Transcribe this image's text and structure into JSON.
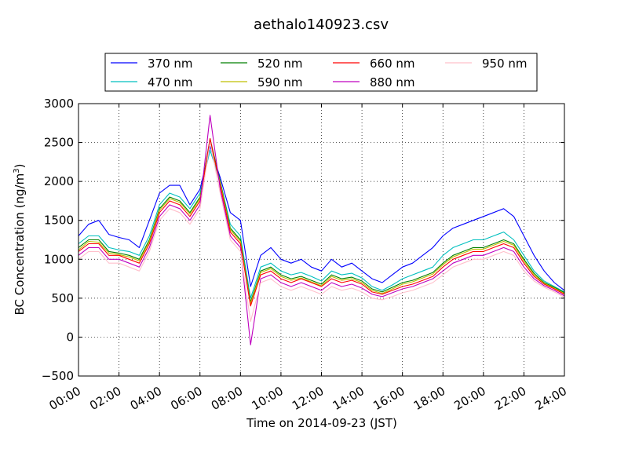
{
  "chart_data": {
    "type": "line",
    "title": "aethalo140923.csv",
    "xlabel": "Time on 2014-09-23 (JST)",
    "ylabel_main": "BC Concentration (ng/m",
    "ylabel_sup": "3",
    "ylabel_end": ")",
    "x_unit": "hours",
    "xlim": [
      0,
      24
    ],
    "ylim": [
      -500,
      3000
    ],
    "grid": true,
    "legend_position": "top",
    "x_ticks": [
      0,
      2,
      4,
      6,
      8,
      10,
      12,
      14,
      16,
      18,
      20,
      22,
      24
    ],
    "x_tick_labels": [
      "00:00",
      "02:00",
      "04:00",
      "06:00",
      "08:00",
      "10:00",
      "12:00",
      "14:00",
      "16:00",
      "18:00",
      "20:00",
      "22:00",
      "24:00"
    ],
    "y_ticks": [
      -500,
      0,
      500,
      1000,
      1500,
      2000,
      2500,
      3000
    ],
    "y_tick_labels": [
      "−500",
      "0",
      "500",
      "1000",
      "1500",
      "2000",
      "2500",
      "3000"
    ],
    "series": [
      {
        "name": "370 nm",
        "color": "#0000ff",
        "x": [
          0,
          0.5,
          1,
          1.5,
          2,
          2.5,
          3,
          3.5,
          4,
          4.5,
          5,
          5.5,
          6,
          6.5,
          7,
          7.5,
          8,
          8.5,
          9,
          9.5,
          10,
          10.5,
          11,
          11.5,
          12,
          12.5,
          13,
          13.5,
          14,
          14.5,
          15,
          15.5,
          16,
          16.5,
          17,
          17.5,
          18,
          18.5,
          19,
          19.5,
          20,
          20.5,
          21,
          21.5,
          22,
          22.5,
          23,
          23.5,
          24
        ],
        "y": [
          1300,
          1450,
          1500,
          1320,
          1280,
          1250,
          1150,
          1500,
          1850,
          1950,
          1950,
          1700,
          1900,
          2450,
          2050,
          1600,
          1500,
          650,
          1050,
          1150,
          1000,
          950,
          1000,
          900,
          850,
          1000,
          900,
          950,
          850,
          750,
          700,
          800,
          900,
          950,
          1050,
          1150,
          1300,
          1400,
          1450,
          1500,
          1550,
          1600,
          1650,
          1550,
          1300,
          1050,
          850,
          700,
          600
        ]
      },
      {
        "name": "470 nm",
        "color": "#00bfbf",
        "x": [
          0,
          0.5,
          1,
          1.5,
          2,
          2.5,
          3,
          3.5,
          4,
          4.5,
          5,
          5.5,
          6,
          6.5,
          7,
          7.5,
          8,
          8.5,
          9,
          9.5,
          10,
          10.5,
          11,
          11.5,
          12,
          12.5,
          13,
          13.5,
          14,
          14.5,
          15,
          15.5,
          16,
          16.5,
          17,
          17.5,
          18,
          18.5,
          19,
          19.5,
          20,
          20.5,
          21,
          21.5,
          22,
          22.5,
          23,
          23.5,
          24
        ],
        "y": [
          1200,
          1300,
          1300,
          1150,
          1120,
          1100,
          1050,
          1300,
          1700,
          1850,
          1800,
          1650,
          1850,
          2400,
          2000,
          1450,
          1300,
          500,
          900,
          950,
          850,
          800,
          830,
          780,
          720,
          850,
          800,
          820,
          760,
          650,
          600,
          670,
          750,
          800,
          850,
          900,
          1050,
          1150,
          1200,
          1250,
          1250,
          1300,
          1350,
          1250,
          1050,
          850,
          720,
          650,
          580
        ]
      },
      {
        "name": "520 nm",
        "color": "#007f00",
        "x": [
          0,
          0.5,
          1,
          1.5,
          2,
          2.5,
          3,
          3.5,
          4,
          4.5,
          5,
          5.5,
          6,
          6.5,
          7,
          7.5,
          8,
          8.5,
          9,
          9.5,
          10,
          10.5,
          11,
          11.5,
          12,
          12.5,
          13,
          13.5,
          14,
          14.5,
          15,
          15.5,
          16,
          16.5,
          17,
          17.5,
          18,
          18.5,
          19,
          19.5,
          20,
          20.5,
          21,
          21.5,
          22,
          22.5,
          23,
          23.5,
          24
        ],
        "y": [
          1150,
          1250,
          1250,
          1100,
          1080,
          1050,
          1000,
          1250,
          1650,
          1800,
          1750,
          1600,
          1800,
          2550,
          2000,
          1400,
          1250,
          450,
          850,
          900,
          800,
          750,
          780,
          730,
          680,
          800,
          750,
          770,
          720,
          620,
          580,
          640,
          700,
          730,
          780,
          830,
          950,
          1050,
          1100,
          1150,
          1150,
          1200,
          1250,
          1200,
          1000,
          820,
          700,
          640,
          570
        ]
      },
      {
        "name": "590 nm",
        "color": "#bfbf00",
        "x": [
          0,
          0.5,
          1,
          1.5,
          2,
          2.5,
          3,
          3.5,
          4,
          4.5,
          5,
          5.5,
          6,
          6.5,
          7,
          7.5,
          8,
          8.5,
          9,
          9.5,
          10,
          10.5,
          11,
          11.5,
          12,
          12.5,
          13,
          13.5,
          14,
          14.5,
          15,
          15.5,
          16,
          16.5,
          17,
          17.5,
          18,
          18.5,
          19,
          19.5,
          20,
          20.5,
          21,
          21.5,
          22,
          22.5,
          23,
          23.5,
          24
        ],
        "y": [
          1120,
          1230,
          1220,
          1080,
          1060,
          1030,
          980,
          1230,
          1630,
          1780,
          1730,
          1580,
          1780,
          2500,
          1980,
          1380,
          1230,
          430,
          830,
          880,
          780,
          730,
          760,
          710,
          660,
          780,
          730,
          750,
          700,
          600,
          560,
          620,
          680,
          710,
          760,
          810,
          930,
          1030,
          1080,
          1130,
          1130,
          1180,
          1230,
          1180,
          980,
          800,
          690,
          630,
          560
        ]
      },
      {
        "name": "660 nm",
        "color": "#ff0000",
        "x": [
          0,
          0.5,
          1,
          1.5,
          2,
          2.5,
          3,
          3.5,
          4,
          4.5,
          5,
          5.5,
          6,
          6.5,
          7,
          7.5,
          8,
          8.5,
          9,
          9.5,
          10,
          10.5,
          11,
          11.5,
          12,
          12.5,
          13,
          13.5,
          14,
          14.5,
          15,
          15.5,
          16,
          16.5,
          17,
          17.5,
          18,
          18.5,
          19,
          19.5,
          20,
          20.5,
          21,
          21.5,
          22,
          22.5,
          23,
          23.5,
          24
        ],
        "y": [
          1100,
          1200,
          1200,
          1050,
          1050,
          1000,
          950,
          1200,
          1600,
          1750,
          1700,
          1550,
          1750,
          2550,
          1950,
          1350,
          1200,
          400,
          800,
          850,
          750,
          700,
          750,
          700,
          650,
          750,
          700,
          730,
          680,
          580,
          550,
          600,
          650,
          680,
          730,
          780,
          900,
          1000,
          1050,
          1100,
          1100,
          1150,
          1200,
          1150,
          950,
          780,
          680,
          620,
          550
        ]
      },
      {
        "name": "880 nm",
        "color": "#bf00bf",
        "x": [
          0,
          0.5,
          1,
          1.5,
          2,
          2.5,
          3,
          3.5,
          4,
          4.5,
          5,
          5.5,
          6,
          6.5,
          7,
          7.5,
          8,
          8.5,
          9,
          9.5,
          10,
          10.5,
          11,
          11.5,
          12,
          12.5,
          13,
          13.5,
          14,
          14.5,
          15,
          15.5,
          16,
          16.5,
          17,
          17.5,
          18,
          18.5,
          19,
          19.5,
          20,
          20.5,
          21,
          21.5,
          22,
          22.5,
          23,
          23.5,
          24
        ],
        "y": [
          1050,
          1150,
          1150,
          1000,
          1000,
          950,
          900,
          1150,
          1550,
          1700,
          1650,
          1500,
          1700,
          2850,
          1900,
          1300,
          1150,
          -100,
          750,
          800,
          700,
          650,
          700,
          650,
          600,
          700,
          650,
          680,
          630,
          550,
          520,
          570,
          620,
          650,
          700,
          750,
          850,
          950,
          1000,
          1050,
          1050,
          1100,
          1150,
          1100,
          900,
          750,
          660,
          600,
          530
        ]
      },
      {
        "name": "950 nm",
        "color": "#ffc0cb",
        "x": [
          0,
          0.5,
          1,
          1.5,
          2,
          2.5,
          3,
          3.5,
          4,
          4.5,
          5,
          5.5,
          6,
          6.5,
          7,
          7.5,
          8,
          8.5,
          9,
          9.5,
          10,
          10.5,
          11,
          11.5,
          12,
          12.5,
          13,
          13.5,
          14,
          14.5,
          15,
          15.5,
          16,
          16.5,
          17,
          17.5,
          18,
          18.5,
          19,
          19.5,
          20,
          20.5,
          21,
          21.5,
          22,
          22.5,
          23,
          23.5,
          24
        ],
        "y": [
          1000,
          1100,
          1100,
          950,
          950,
          900,
          850,
          1100,
          1500,
          1650,
          1600,
          1450,
          1650,
          2500,
          1850,
          1250,
          1100,
          200,
          700,
          750,
          650,
          600,
          650,
          600,
          550,
          650,
          600,
          630,
          580,
          500,
          480,
          520,
          570,
          600,
          650,
          700,
          800,
          900,
          950,
          1000,
          1000,
          1050,
          1100,
          1050,
          850,
          720,
          640,
          580,
          510
        ]
      }
    ]
  }
}
